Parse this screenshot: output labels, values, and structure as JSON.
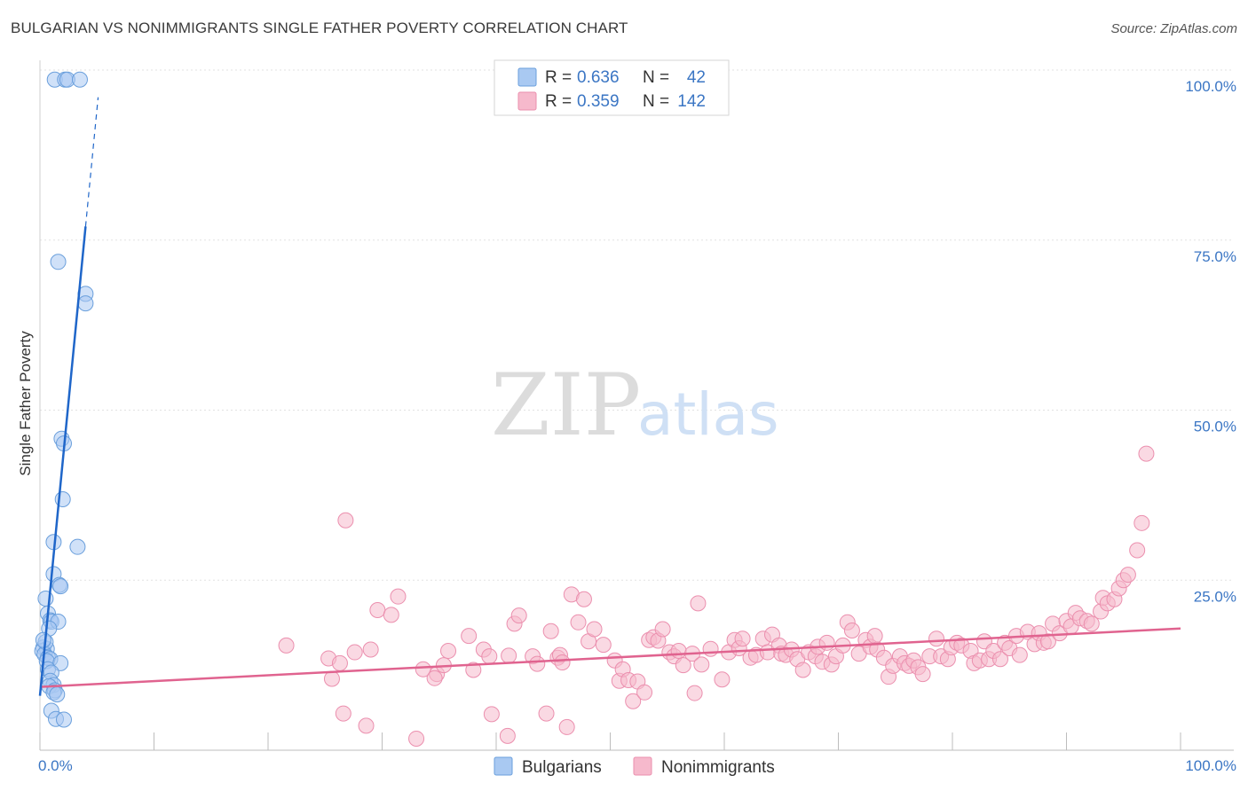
{
  "header": {
    "title": "BULGARIAN VS NONIMMIGRANTS SINGLE FATHER POVERTY CORRELATION CHART",
    "source": "Source: ZipAtlas.com"
  },
  "watermark": {
    "zip": "ZIP",
    "atlas": "atlas"
  },
  "colors": {
    "blue_fill": "#a9c9f2",
    "blue_stroke": "#6a9fdc",
    "blue_line": "#1f66c9",
    "pink_fill": "#f6b9cc",
    "pink_stroke": "#eb8fae",
    "pink_line": "#e0638f",
    "grid": "#e2e2e2",
    "tick_label": "#3b76c4"
  },
  "legend": {
    "r_label": "R =",
    "n_label": "N =",
    "items": [
      {
        "name": "Bulgarians",
        "r": "0.636",
        "n": "42"
      },
      {
        "name": "Nonimmigrants",
        "r": "0.359",
        "n": "142"
      }
    ]
  },
  "chart_data": {
    "type": "scatter",
    "title": "BULGARIAN VS NONIMMIGRANTS SINGLE FATHER POVERTY CORRELATION CHART",
    "xlabel": "",
    "ylabel": "Single Father Poverty",
    "xlim": [
      0,
      100
    ],
    "ylim": [
      0,
      100
    ],
    "x_tick_labels": [
      "0.0%",
      "100.0%"
    ],
    "y_tick_labels": [
      {
        "value": 25,
        "label": "25.0%"
      },
      {
        "value": 50,
        "label": "50.0%"
      },
      {
        "value": 75,
        "label": "75.0%"
      },
      {
        "value": 100,
        "label": "100.0%"
      }
    ],
    "grid": true,
    "legend_position": "top-center",
    "series": [
      {
        "name": "Bulgarians",
        "color": "#a9c9f2",
        "trend": {
          "x0": 0.0,
          "y0": 8.0,
          "x1": 4.0,
          "y1": 77.0,
          "dash_to_x": 5.1,
          "dash_to_y": 96.0
        },
        "points": [
          [
            1.3,
            98.6
          ],
          [
            2.2,
            98.6
          ],
          [
            2.4,
            98.6
          ],
          [
            3.5,
            98.6
          ],
          [
            1.6,
            71.8
          ],
          [
            4.0,
            67.1
          ],
          [
            4.0,
            65.7
          ],
          [
            1.9,
            45.8
          ],
          [
            2.1,
            45.1
          ],
          [
            2.0,
            36.9
          ],
          [
            1.2,
            30.6
          ],
          [
            3.3,
            29.9
          ],
          [
            1.2,
            25.9
          ],
          [
            1.7,
            24.3
          ],
          [
            1.8,
            24.1
          ],
          [
            0.5,
            22.3
          ],
          [
            0.7,
            20.1
          ],
          [
            0.9,
            19.1
          ],
          [
            1.0,
            18.9
          ],
          [
            1.6,
            18.9
          ],
          [
            0.8,
            17.9
          ],
          [
            0.3,
            15.1
          ],
          [
            0.6,
            14.9
          ],
          [
            0.2,
            14.6
          ],
          [
            0.4,
            14.1
          ],
          [
            0.7,
            13.6
          ],
          [
            0.9,
            13.4
          ],
          [
            0.6,
            13.1
          ],
          [
            1.8,
            12.8
          ],
          [
            0.7,
            11.9
          ],
          [
            1.0,
            11.4
          ],
          [
            0.9,
            10.2
          ],
          [
            1.2,
            9.6
          ],
          [
            0.8,
            9.4
          ],
          [
            1.3,
            8.8
          ],
          [
            1.2,
            8.5
          ],
          [
            1.0,
            5.8
          ],
          [
            1.4,
            4.6
          ],
          [
            2.1,
            4.5
          ],
          [
            0.5,
            15.9
          ],
          [
            1.5,
            8.2
          ],
          [
            0.3,
            16.2
          ]
        ]
      },
      {
        "name": "Nonimmigrants",
        "color": "#f6b9cc",
        "trend": {
          "x0": 0.0,
          "y0": 9.3,
          "x1": 100.0,
          "y1": 17.9
        },
        "points": [
          [
            21.6,
            15.4
          ],
          [
            25.3,
            13.5
          ],
          [
            25.6,
            10.5
          ],
          [
            26.3,
            12.8
          ],
          [
            26.6,
            5.4
          ],
          [
            26.8,
            33.8
          ],
          [
            27.6,
            14.4
          ],
          [
            28.6,
            3.6
          ],
          [
            29.0,
            14.8
          ],
          [
            29.6,
            20.6
          ],
          [
            30.8,
            19.9
          ],
          [
            31.4,
            22.6
          ],
          [
            33.0,
            1.7
          ],
          [
            33.6,
            11.9
          ],
          [
            34.8,
            11.2
          ],
          [
            34.6,
            10.6
          ],
          [
            35.4,
            12.5
          ],
          [
            35.8,
            14.6
          ],
          [
            37.6,
            16.8
          ],
          [
            38.0,
            11.8
          ],
          [
            38.9,
            14.8
          ],
          [
            39.4,
            13.8
          ],
          [
            39.6,
            5.3
          ],
          [
            41.0,
            2.1
          ],
          [
            41.1,
            13.9
          ],
          [
            41.6,
            18.6
          ],
          [
            42.0,
            19.8
          ],
          [
            43.2,
            13.8
          ],
          [
            43.6,
            12.7
          ],
          [
            44.4,
            5.4
          ],
          [
            44.8,
            17.5
          ],
          [
            45.4,
            13.6
          ],
          [
            45.6,
            14.0
          ],
          [
            45.8,
            12.9
          ],
          [
            46.2,
            3.4
          ],
          [
            46.6,
            22.9
          ],
          [
            47.2,
            18.8
          ],
          [
            47.7,
            22.2
          ],
          [
            48.1,
            16.0
          ],
          [
            48.6,
            17.8
          ],
          [
            49.4,
            15.5
          ],
          [
            50.4,
            13.2
          ],
          [
            50.8,
            10.2
          ],
          [
            51.1,
            11.9
          ],
          [
            51.6,
            10.3
          ],
          [
            52.0,
            7.2
          ],
          [
            52.4,
            10.1
          ],
          [
            53.0,
            8.5
          ],
          [
            53.4,
            16.2
          ],
          [
            53.8,
            16.6
          ],
          [
            54.2,
            16.1
          ],
          [
            54.6,
            17.8
          ],
          [
            55.2,
            14.4
          ],
          [
            55.6,
            13.8
          ],
          [
            56.0,
            14.6
          ],
          [
            56.4,
            12.5
          ],
          [
            57.2,
            14.2
          ],
          [
            57.4,
            8.4
          ],
          [
            57.7,
            21.6
          ],
          [
            58.0,
            12.6
          ],
          [
            58.8,
            14.9
          ],
          [
            59.8,
            10.4
          ],
          [
            60.4,
            14.4
          ],
          [
            60.9,
            16.2
          ],
          [
            61.3,
            15.0
          ],
          [
            61.6,
            16.4
          ],
          [
            62.3,
            13.6
          ],
          [
            62.8,
            14.0
          ],
          [
            63.4,
            16.4
          ],
          [
            63.8,
            14.4
          ],
          [
            64.2,
            17.0
          ],
          [
            64.8,
            15.4
          ],
          [
            65.0,
            14.2
          ],
          [
            65.4,
            14.0
          ],
          [
            65.9,
            14.8
          ],
          [
            66.4,
            13.4
          ],
          [
            66.9,
            11.8
          ],
          [
            67.4,
            14.4
          ],
          [
            68.0,
            13.8
          ],
          [
            68.2,
            15.2
          ],
          [
            68.6,
            13.0
          ],
          [
            69.0,
            15.8
          ],
          [
            69.4,
            12.6
          ],
          [
            69.8,
            13.8
          ],
          [
            70.4,
            15.4
          ],
          [
            70.8,
            18.8
          ],
          [
            71.2,
            17.6
          ],
          [
            71.8,
            14.2
          ],
          [
            72.4,
            16.2
          ],
          [
            72.8,
            15.2
          ],
          [
            73.2,
            16.8
          ],
          [
            73.4,
            14.8
          ],
          [
            74.0,
            13.6
          ],
          [
            74.4,
            10.8
          ],
          [
            74.8,
            12.4
          ],
          [
            75.4,
            13.8
          ],
          [
            75.8,
            12.8
          ],
          [
            76.2,
            12.4
          ],
          [
            76.6,
            13.2
          ],
          [
            77.0,
            12.2
          ],
          [
            77.4,
            11.2
          ],
          [
            78.0,
            13.8
          ],
          [
            78.6,
            16.4
          ],
          [
            79.0,
            13.8
          ],
          [
            79.6,
            13.4
          ],
          [
            79.9,
            15.1
          ],
          [
            80.4,
            15.8
          ],
          [
            80.8,
            15.4
          ],
          [
            81.6,
            14.6
          ],
          [
            81.9,
            12.8
          ],
          [
            82.4,
            13.2
          ],
          [
            82.8,
            16.0
          ],
          [
            83.2,
            13.4
          ],
          [
            83.6,
            14.6
          ],
          [
            84.2,
            13.4
          ],
          [
            84.6,
            15.8
          ],
          [
            85.0,
            15.0
          ],
          [
            85.6,
            16.8
          ],
          [
            85.9,
            14.0
          ],
          [
            86.6,
            17.4
          ],
          [
            87.2,
            15.6
          ],
          [
            87.6,
            17.2
          ],
          [
            88.0,
            15.8
          ],
          [
            88.4,
            16.0
          ],
          [
            88.8,
            18.6
          ],
          [
            89.4,
            17.2
          ],
          [
            90.0,
            19.0
          ],
          [
            90.4,
            18.2
          ],
          [
            90.8,
            20.2
          ],
          [
            91.2,
            19.4
          ],
          [
            91.8,
            19.0
          ],
          [
            92.2,
            18.6
          ],
          [
            93.0,
            20.4
          ],
          [
            93.2,
            22.4
          ],
          [
            93.6,
            21.6
          ],
          [
            94.2,
            22.2
          ],
          [
            94.6,
            23.8
          ],
          [
            95.0,
            25.0
          ],
          [
            95.4,
            25.8
          ],
          [
            96.2,
            29.4
          ],
          [
            96.6,
            33.4
          ],
          [
            97.0,
            43.6
          ]
        ]
      }
    ]
  }
}
